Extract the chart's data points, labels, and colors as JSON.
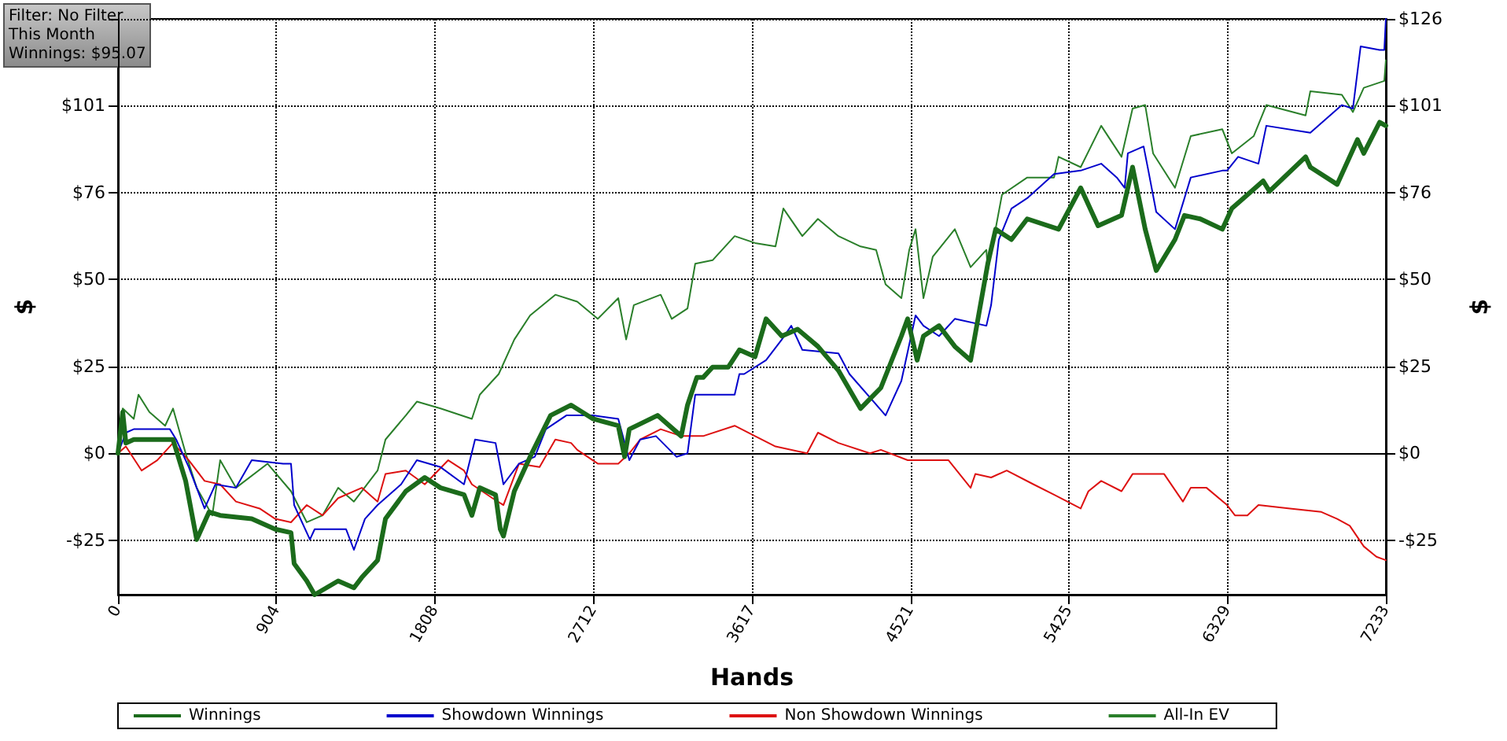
{
  "chart_data": {
    "type": "line",
    "xlabel": "Hands",
    "ylabel": "$",
    "y2label": "$",
    "annotations": [
      "Filter: No Filter",
      "This Month",
      "Winnings: $95.07"
    ],
    "xlim": [
      0,
      7233
    ],
    "xticks": [
      0,
      904,
      1808,
      2712,
      3617,
      4521,
      5425,
      6329,
      7233
    ],
    "ylim": [
      -41,
      126
    ],
    "yticks": [
      {
        "value": -25.2,
        "label": "-$25"
      },
      {
        "value": 0,
        "label": "$0"
      },
      {
        "value": 25.2,
        "label": "$25"
      },
      {
        "value": 50.4,
        "label": "$50"
      },
      {
        "value": 75.6,
        "label": "$76"
      },
      {
        "value": 100.8,
        "label": "$101"
      },
      {
        "value": 126,
        "label": null
      }
    ],
    "y2lim": [
      -41,
      126
    ],
    "y2ticks": [
      {
        "value": -25.2,
        "label": "-$25"
      },
      {
        "value": 0,
        "label": "$0"
      },
      {
        "value": 25.2,
        "label": "$25"
      },
      {
        "value": 50.4,
        "label": "$50"
      },
      {
        "value": 75.6,
        "label": "$76"
      },
      {
        "value": 100.8,
        "label": "$101"
      },
      {
        "value": 126,
        "label": "$126"
      }
    ],
    "grid": true,
    "legend": "bottom",
    "marker": "none",
    "line_style": "solid",
    "ref_lines": [
      {
        "axis": "y",
        "value": 0,
        "color": "#000000"
      }
    ],
    "series": [
      {
        "name": "Winnings",
        "color": "#1b6b1b",
        "x": [
          0,
          27,
          45,
          90,
          224,
          314,
          386,
          449,
          520,
          583,
          763,
          897,
          987,
          1005,
          1077,
          1122,
          1256,
          1346,
          1391,
          1481,
          1526,
          1642,
          1750,
          1840,
          1974,
          2019,
          2064,
          2154,
          2181,
          2199,
          2261,
          2351,
          2468,
          2585,
          2710,
          2854,
          2890,
          2917,
          3078,
          3213,
          3249,
          3302,
          3338,
          3392,
          3482,
          3545,
          3634,
          3697,
          3787,
          3877,
          3993,
          4110,
          4236,
          4352,
          4469,
          4505,
          4559,
          4595,
          4684,
          4774,
          4864,
          4962,
          5007,
          5097,
          5187,
          5366,
          5492,
          5591,
          5725,
          5788,
          5860,
          5923,
          6030,
          6084,
          6174,
          6300,
          6354,
          6533,
          6569,
          6775,
          6802,
          6955,
          7071,
          7107,
          7197,
          7233
        ],
        "values": [
          0,
          12,
          3,
          4,
          4,
          4,
          -8,
          -25,
          -17,
          -18,
          -19,
          -22,
          -23,
          -32,
          -37,
          -41,
          -37,
          -39,
          -36,
          -31,
          -19,
          -11,
          -7,
          -10,
          -12,
          -18,
          -10,
          -12,
          -22,
          -24,
          -11,
          -1,
          11,
          14,
          10,
          8,
          -1,
          7,
          11,
          5,
          14,
          22,
          22,
          25,
          25,
          30,
          28,
          39,
          34,
          36,
          31,
          24,
          13,
          19,
          34,
          39,
          27,
          34,
          37,
          31,
          27,
          55,
          65,
          62,
          68,
          65,
          77,
          66,
          69,
          83,
          65,
          53,
          62,
          69,
          68,
          65,
          71,
          79,
          76,
          86,
          83,
          78,
          91,
          87,
          96,
          95
        ]
      },
      {
        "name": "Showdown Winnings",
        "color": "#0000cc",
        "x": [
          0,
          45,
          90,
          224,
          296,
          332,
          404,
          494,
          556,
          673,
          763,
          942,
          987,
          1005,
          1095,
          1122,
          1301,
          1346,
          1409,
          1481,
          1615,
          1705,
          1840,
          1974,
          2037,
          2154,
          2199,
          2288,
          2378,
          2441,
          2558,
          2710,
          2854,
          2917,
          2979,
          3069,
          3186,
          3249,
          3293,
          3518,
          3545,
          3572,
          3697,
          3787,
          3841,
          3904,
          4110,
          4173,
          4379,
          4469,
          4550,
          4595,
          4684,
          4774,
          4954,
          4981,
          5025,
          5097,
          5187,
          5340,
          5492,
          5609,
          5698,
          5743,
          5761,
          5851,
          5878,
          5923,
          6030,
          6120,
          6300,
          6327,
          6390,
          6506,
          6551,
          6802,
          6982,
          7045,
          7089,
          7197,
          7224,
          7233
        ],
        "values": [
          0,
          6,
          7,
          7,
          7,
          4,
          -4,
          -16,
          -9,
          -10,
          -2,
          -3,
          -3,
          -15,
          -25,
          -22,
          -22,
          -28,
          -19,
          -15,
          -9,
          -2,
          -4,
          -9,
          4,
          3,
          -9,
          -3,
          -1,
          7,
          11,
          11,
          10,
          -2,
          4,
          5,
          -1,
          0,
          17,
          17,
          23,
          23,
          27,
          33,
          37,
          30,
          29,
          23,
          11,
          21,
          40,
          37,
          34,
          39,
          37,
          43,
          62,
          71,
          74,
          81,
          82,
          84,
          80,
          77,
          87,
          89,
          82,
          70,
          65,
          80,
          82,
          82,
          86,
          84,
          95,
          93,
          101,
          100,
          118,
          117,
          117,
          126
        ]
      },
      {
        "name": "Non Showdown Winnings",
        "color": "#dd1111",
        "x": [
          0,
          45,
          135,
          224,
          314,
          404,
          494,
          583,
          673,
          808,
          897,
          987,
          1077,
          1167,
          1256,
          1391,
          1481,
          1526,
          1642,
          1750,
          1884,
          1974,
          2019,
          2136,
          2199,
          2288,
          2405,
          2495,
          2585,
          2620,
          2737,
          2854,
          2917,
          2979,
          3096,
          3213,
          3338,
          3518,
          3634,
          3751,
          3931,
          3993,
          4110,
          4290,
          4352,
          4505,
          4738,
          4864,
          4891,
          4981,
          5070,
          5223,
          5340,
          5492,
          5536,
          5609,
          5725,
          5788,
          5968,
          6075,
          6120,
          6210,
          6327,
          6372,
          6443,
          6506,
          6686,
          6865,
          6955,
          7027,
          7107,
          7179,
          7233
        ],
        "values": [
          0,
          2,
          -5,
          -2,
          3,
          -2,
          -8,
          -9,
          -14,
          -16,
          -19,
          -20,
          -15,
          -18,
          -13,
          -10,
          -14,
          -6,
          -5,
          -9,
          -2,
          -5,
          -9,
          -13,
          -15,
          -3,
          -4,
          4,
          3,
          1,
          -3,
          -3,
          0,
          4,
          7,
          5,
          5,
          8,
          5,
          2,
          0,
          6,
          3,
          0,
          1,
          -2,
          -2,
          -10,
          -6,
          -7,
          -5,
          -9,
          -12,
          -16,
          -11,
          -8,
          -11,
          -6,
          -6,
          -14,
          -10,
          -10,
          -15,
          -18,
          -18,
          -15,
          -16,
          -17,
          -19,
          -21,
          -27,
          -30,
          -31
        ]
      },
      {
        "name": "All-In EV",
        "color": "#2a7f2a",
        "x": [
          0,
          27,
          90,
          117,
          179,
          269,
          314,
          386,
          449,
          538,
          583,
          673,
          853,
          987,
          1077,
          1167,
          1256,
          1346,
          1481,
          1526,
          1642,
          1705,
          1840,
          2019,
          2064,
          2172,
          2261,
          2351,
          2495,
          2620,
          2737,
          2854,
          2899,
          2943,
          3096,
          3159,
          3249,
          3293,
          3392,
          3518,
          3634,
          3751,
          3796,
          3904,
          3993,
          4110,
          4236,
          4325,
          4379,
          4469,
          4514,
          4550,
          4595,
          4648,
          4774,
          4864,
          4954,
          4962,
          5043,
          5187,
          5340,
          5366,
          5492,
          5609,
          5725,
          5788,
          5860,
          5905,
          6030,
          6120,
          6300,
          6354,
          6479,
          6551,
          6775,
          6802,
          6982,
          7045,
          7107,
          7224,
          7233
        ],
        "values": [
          0,
          13,
          10,
          17,
          12,
          8,
          13,
          0,
          -10,
          -18,
          -2,
          -10,
          -3,
          -11,
          -20,
          -18,
          -10,
          -14,
          -5,
          4,
          11,
          15,
          13,
          10,
          17,
          23,
          33,
          40,
          46,
          44,
          39,
          45,
          33,
          43,
          46,
          39,
          42,
          55,
          56,
          63,
          61,
          60,
          71,
          63,
          68,
          63,
          60,
          59,
          49,
          45,
          59,
          65,
          45,
          57,
          65,
          54,
          59,
          53,
          75,
          80,
          80,
          86,
          83,
          95,
          86,
          100,
          101,
          87,
          77,
          92,
          94,
          87,
          92,
          101,
          98,
          105,
          104,
          99,
          106,
          108,
          114
        ]
      }
    ]
  }
}
